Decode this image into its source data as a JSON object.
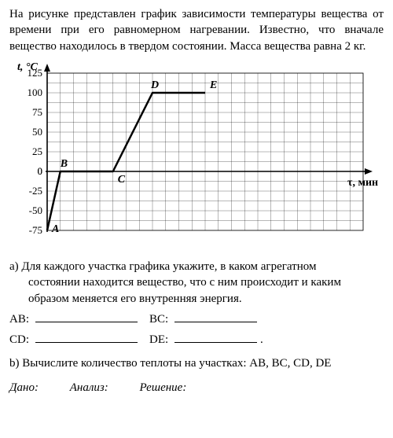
{
  "intro_text": "На рисунке представлен график зависимости температуры вещества от времени при его равномерном нагревании. Известно, что вначале вещество находилось в твердом состоянии. Масса вещества равна 2 кг.",
  "question_a_lead": "а) Для каждого участка графика укажите, в каком агрегатном",
  "question_a_line2": "состоянии находится вещество, что с ним происходит и каким",
  "question_a_line3": "образом меняется его внутренняя энергия.",
  "label_AB": "AB:",
  "label_BC": "BC:",
  "label_CD": "CD:",
  "label_DE": "DE:",
  "question_b": "b) Вычислите количество теплоты на участках: AB, BC, CD, DE",
  "final_given": "Дано:",
  "final_analysis": "Анализ:",
  "final_solution": "Решение:",
  "chart": {
    "type": "line",
    "background_color": "#ffffff",
    "grid_color": "#000000",
    "axis_color": "#000000",
    "line_color": "#000000",
    "line_width": 2.5,
    "y_label": "t, °C",
    "x_label": "τ, мин",
    "y_ticks": [
      -75,
      -50,
      -25,
      0,
      25,
      50,
      75,
      100,
      125
    ],
    "y_min": -75,
    "y_max": 125,
    "x_min": 0,
    "x_max": 24,
    "grid_x_cells": 24,
    "grid_y_cells": 16,
    "points": {
      "A": {
        "x": 0,
        "y": -75,
        "label": "A"
      },
      "B": {
        "x": 1,
        "y": 0,
        "label": "B"
      },
      "C": {
        "x": 5,
        "y": 0,
        "label": "C"
      },
      "D": {
        "x": 8,
        "y": 100,
        "label": "D"
      },
      "E": {
        "x": 12,
        "y": 100,
        "label": "E"
      }
    },
    "font_size_axis_label": 14,
    "font_size_ticks": 13,
    "font_size_point_labels": 14
  },
  "blank_widths": {
    "ab": 130,
    "bc": 105,
    "cd": 130,
    "de": 105
  }
}
